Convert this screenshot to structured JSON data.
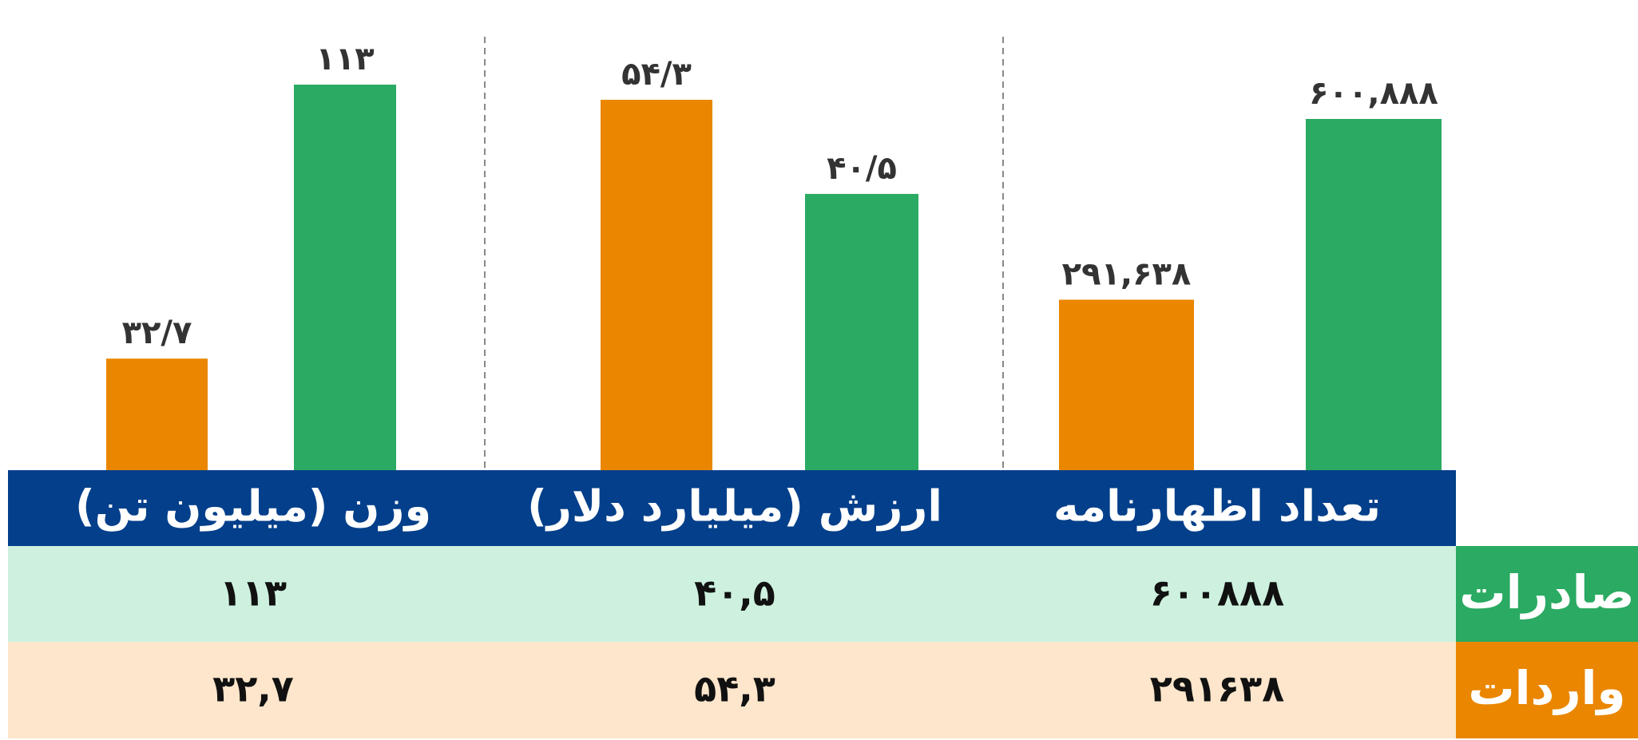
{
  "chart_data": [
    {
      "type": "bar",
      "title": "تعداد اظهارنامه",
      "series": [
        {
          "name": "واردات",
          "color": "#ea8600",
          "values": [
            291638
          ],
          "value_labels": [
            "۲۹۱,۶۳۸"
          ]
        },
        {
          "name": "صادرات",
          "color": "#2aaa62",
          "values": [
            600888
          ],
          "value_labels": [
            "۶۰۰,۸۸۸"
          ]
        }
      ]
    },
    {
      "type": "bar",
      "title": "ارزش (میلیارد دلار)",
      "series": [
        {
          "name": "واردات",
          "color": "#ea8600",
          "values": [
            54.3
          ],
          "value_labels": [
            "۵۴/۳"
          ]
        },
        {
          "name": "صادرات",
          "color": "#2aaa62",
          "values": [
            40.5
          ],
          "value_labels": [
            "۴۰/۵"
          ]
        }
      ]
    },
    {
      "type": "bar",
      "title": "وزن (میلیون تن)",
      "series": [
        {
          "name": "واردات",
          "color": "#ea8600",
          "values": [
            32.7
          ],
          "value_labels": [
            "۳۲/۷"
          ]
        },
        {
          "name": "صادرات",
          "color": "#2aaa62",
          "values": [
            113
          ],
          "value_labels": [
            "۱۱۳"
          ]
        }
      ]
    }
  ],
  "table": {
    "rows": [
      [
        "۶۰۰۸۸۸",
        "۴۰,۵",
        "۱۱۳"
      ],
      [
        "۲۹۱۶۳۸",
        "۵۴,۳",
        "۳۲,۷"
      ]
    ]
  }
}
